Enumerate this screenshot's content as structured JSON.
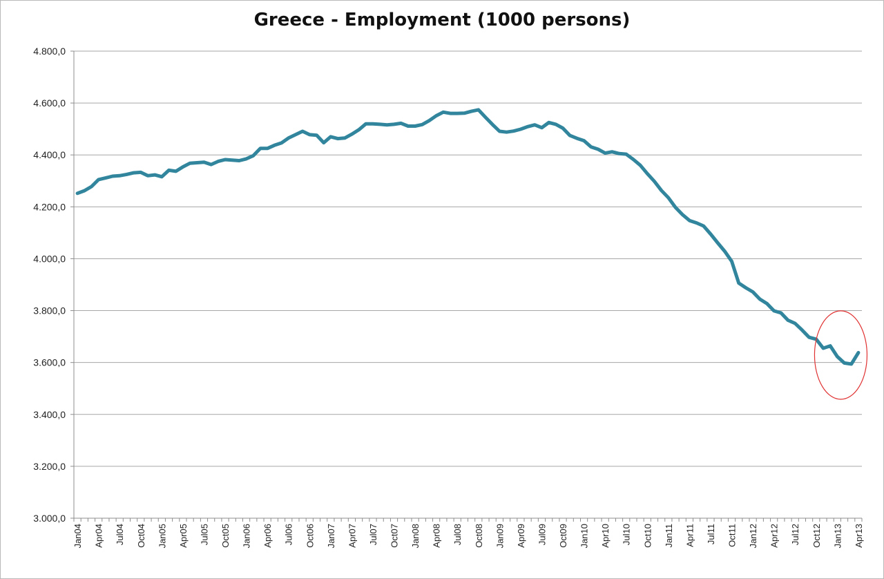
{
  "chart_data": {
    "type": "line",
    "title": "Greece - Employment (1000 persons)",
    "xlabel": "",
    "ylabel": "",
    "ylim": [
      3000,
      4800
    ],
    "y_ticks": [
      "3.000,0",
      "3.200,0",
      "3.400,0",
      "3.600,0",
      "3.800,0",
      "4.000,0",
      "4.200,0",
      "4.400,0",
      "4.600,0",
      "4.800,0"
    ],
    "x_tick_labels": [
      "Jan04",
      "Apr04",
      "Jul04",
      "Oct04",
      "Jan05",
      "Apr05",
      "Jul05",
      "Oct05",
      "Jan06",
      "Apr06",
      "Jul06",
      "Oct06",
      "Jan07",
      "Apr07",
      "Jul07",
      "Oct07",
      "Jan08",
      "Apr08",
      "Jul08",
      "Oct08",
      "Jan09",
      "Apr09",
      "Jul09",
      "Oct09",
      "Jan10",
      "Apr10",
      "Jul10",
      "Oct10",
      "Jan11",
      "Apr11",
      "Jul11",
      "Oct11",
      "Jan12",
      "Apr12",
      "Jul12",
      "Oct12",
      "Jan13",
      "Apr13"
    ],
    "grid": true,
    "legend": "none",
    "line_color": "#31859c",
    "highlight_color": "#e03030",
    "series": [
      {
        "start": "2004-01",
        "frequency": "monthly",
        "values": [
          4252,
          4262,
          4278,
          4305,
          4311,
          4318,
          4320,
          4325,
          4331,
          4333,
          4320,
          4323,
          4316,
          4341,
          4337,
          4354,
          4368,
          4370,
          4372,
          4363,
          4375,
          4382,
          4380,
          4378,
          4385,
          4397,
          4425,
          4425,
          4437,
          4446,
          4465,
          4478,
          4491,
          4478,
          4476,
          4447,
          4470,
          4463,
          4465,
          4480,
          4497,
          4520,
          4520,
          4518,
          4516,
          4518,
          4522,
          4511,
          4511,
          4517,
          4532,
          4551,
          4565,
          4560,
          4560,
          4561,
          4568,
          4574,
          4545,
          4517,
          4491,
          4488,
          4492,
          4499,
          4509,
          4516,
          4505,
          4525,
          4518,
          4503,
          4475,
          4464,
          4455,
          4431,
          4422,
          4407,
          4412,
          4405,
          4403,
          4383,
          4360,
          4328,
          4298,
          4263,
          4235,
          4198,
          4170,
          4147,
          4138,
          4126,
          4095,
          4061,
          4029,
          3990,
          3906,
          3888,
          3872,
          3844,
          3827,
          3799,
          3791,
          3763,
          3751,
          3725,
          3697,
          3690,
          3655,
          3664,
          3623,
          3598,
          3594,
          3638
        ]
      }
    ],
    "annotation": "red-ellipse-around-latest-values"
  }
}
